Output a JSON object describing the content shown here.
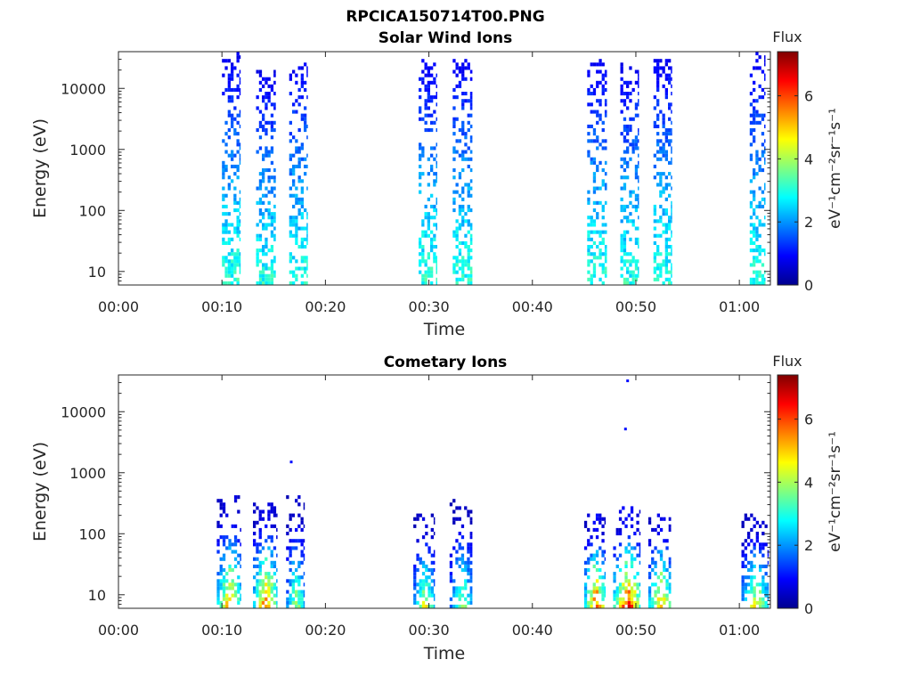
{
  "figure_title": "RPCICA150714T00.PNG",
  "colorscale": [
    "#00008f",
    "#0000ff",
    "#0080ff",
    "#00ffff",
    "#80ff80",
    "#ffff00",
    "#ff8000",
    "#ff0000",
    "#800000"
  ],
  "chart_data": [
    {
      "type": "heatmap",
      "title": "Solar Wind Ions",
      "xlabel": "Time",
      "ylabel": "Energy (eV)",
      "x_range_minutes": [
        0,
        63
      ],
      "x_ticks": [
        "00:00",
        "00:10",
        "00:20",
        "00:30",
        "00:40",
        "00:50",
        "01:00"
      ],
      "y_scale": "log",
      "y_range": [
        6,
        40000
      ],
      "y_ticks": [
        "10",
        "100",
        "1000",
        "10000"
      ],
      "colorbar": {
        "label_top": "Flux",
        "label": "eV⁻¹cm⁻²sr⁻¹s⁻¹",
        "range": [
          0,
          7.4
        ],
        "ticks": [
          "0",
          "2",
          "4",
          "6"
        ]
      },
      "bursts": [
        {
          "start_min": 10.0,
          "end_min": 11.8,
          "max_energy": 35000,
          "peak_flux": 3.4
        },
        {
          "start_min": 13.3,
          "end_min": 15.2,
          "max_energy": 18000,
          "peak_flux": 3.3
        },
        {
          "start_min": 16.5,
          "end_min": 18.2,
          "max_energy": 30000,
          "peak_flux": 3.3
        },
        {
          "start_min": 29.0,
          "end_min": 30.8,
          "max_energy": 30000,
          "peak_flux": 3.4
        },
        {
          "start_min": 32.3,
          "end_min": 34.2,
          "max_energy": 30000,
          "peak_flux": 3.4
        },
        {
          "start_min": 45.3,
          "end_min": 47.2,
          "max_energy": 30000,
          "peak_flux": 3.4
        },
        {
          "start_min": 48.5,
          "end_min": 50.2,
          "max_energy": 25000,
          "peak_flux": 3.3
        },
        {
          "start_min": 51.7,
          "end_min": 53.5,
          "max_energy": 30000,
          "peak_flux": 3.4
        },
        {
          "start_min": 61.0,
          "end_min": 62.5,
          "max_energy": 35000,
          "peak_flux": 3.3
        }
      ]
    },
    {
      "type": "heatmap",
      "title": "Cometary Ions",
      "xlabel": "Time",
      "ylabel": "Energy (eV)",
      "x_range_minutes": [
        0,
        63
      ],
      "x_ticks": [
        "00:00",
        "00:10",
        "00:20",
        "00:30",
        "00:40",
        "00:50",
        "01:00"
      ],
      "y_scale": "log",
      "y_range": [
        6,
        40000
      ],
      "y_ticks": [
        "10",
        "100",
        "1000",
        "10000"
      ],
      "colorbar": {
        "label_top": "Flux",
        "label": "eV⁻¹cm⁻²sr⁻¹s⁻¹",
        "range": [
          0,
          7.4
        ],
        "ticks": [
          "0",
          "2",
          "4",
          "6"
        ]
      },
      "bursts": [
        {
          "start_min": 9.5,
          "end_min": 11.8,
          "max_energy": 400,
          "peak_flux": 5.8
        },
        {
          "start_min": 13.0,
          "end_min": 15.3,
          "max_energy": 300,
          "peak_flux": 6.3
        },
        {
          "start_min": 16.2,
          "end_min": 18.0,
          "max_energy": 380,
          "peak_flux": 4.4
        },
        {
          "start_min": 28.5,
          "end_min": 30.5,
          "max_energy": 200,
          "peak_flux": 4.8
        },
        {
          "start_min": 32.0,
          "end_min": 34.2,
          "max_energy": 350,
          "peak_flux": 4.2
        },
        {
          "start_min": 45.0,
          "end_min": 47.0,
          "max_energy": 200,
          "peak_flux": 6.6
        },
        {
          "start_min": 47.8,
          "end_min": 50.4,
          "max_energy": 250,
          "peak_flux": 6.9
        },
        {
          "start_min": 51.2,
          "end_min": 53.4,
          "max_energy": 200,
          "peak_flux": 6.0
        },
        {
          "start_min": 60.2,
          "end_min": 62.8,
          "max_energy": 200,
          "peak_flux": 5.0
        }
      ],
      "isolated_points": [
        {
          "time_min": 16.7,
          "energy": 1500,
          "flux": 1.0
        },
        {
          "time_min": 49.2,
          "energy": 32000,
          "flux": 1.0
        },
        {
          "time_min": 49.0,
          "energy": 5200,
          "flux": 1.0
        }
      ]
    }
  ]
}
